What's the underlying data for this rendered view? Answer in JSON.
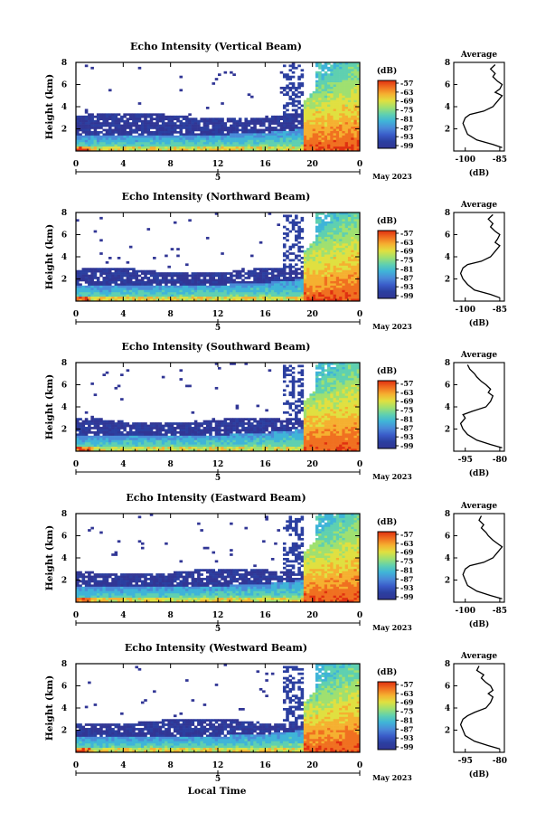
{
  "figure": {
    "xlabel": "Local Time",
    "date_label": "May 2023",
    "colorbar_unit": "(dB)",
    "colorbar_ticks": [
      "-57",
      "-63",
      "-69",
      "-75",
      "-81",
      "-87",
      "-93",
      "-99"
    ],
    "colormap": [
      "#313695",
      "#2b3fa0",
      "#3a5cc9",
      "#4a8bd9",
      "#3fb4d8",
      "#5fd0b0",
      "#9fe070",
      "#e0e040",
      "#f5b030",
      "#f07020",
      "#e03010"
    ]
  },
  "chart_data": [
    {
      "type": "heatmap",
      "title": "Echo Intensity (Vertical Beam)",
      "ylabel": "Height (km)",
      "xticks": [
        "0",
        "4",
        "8",
        "12",
        "16",
        "20",
        "0"
      ],
      "yticks": [
        "8",
        "6",
        "4",
        "2"
      ],
      "xlim": [
        0,
        24
      ],
      "ylim": [
        0,
        8
      ],
      "day_tick": "5",
      "profile": {
        "title": "Average",
        "xlabel": "(dB)",
        "xticks": [
          "-100",
          "-85"
        ],
        "xlim": [
          -105,
          -83
        ],
        "height": [
          0.3,
          0.6,
          1.0,
          1.5,
          2.0,
          2.5,
          3.0,
          3.3,
          3.6,
          4.0,
          4.5,
          5.0,
          5.3,
          5.6,
          6.0,
          6.3,
          6.7,
          7.0,
          7.4,
          7.8
        ],
        "values": [
          -84,
          -88,
          -95,
          -99,
          -100,
          -101,
          -100,
          -98,
          -92,
          -88,
          -86,
          -84,
          -87,
          -85,
          -84,
          -86,
          -88,
          -87,
          -89,
          -87
        ]
      }
    },
    {
      "type": "heatmap",
      "title": "Echo Intensity (Northward Beam)",
      "ylabel": "Height (km)",
      "xticks": [
        "0",
        "4",
        "8",
        "12",
        "16",
        "20",
        "0"
      ],
      "yticks": [
        "8",
        "6",
        "4",
        "2"
      ],
      "xlim": [
        0,
        24
      ],
      "ylim": [
        0,
        8
      ],
      "day_tick": "5",
      "profile": {
        "title": "Average",
        "xlabel": "(dB)",
        "xticks": [
          "-100",
          "-85"
        ],
        "xlim": [
          -105,
          -83
        ],
        "height": [
          0.3,
          0.6,
          1.0,
          1.5,
          2.0,
          2.5,
          3.0,
          3.3,
          3.6,
          4.0,
          4.5,
          5.0,
          5.3,
          5.6,
          6.0,
          6.3,
          6.7,
          7.0,
          7.4,
          7.8
        ],
        "values": [
          -85,
          -89,
          -96,
          -99,
          -101,
          -102,
          -101,
          -99,
          -93,
          -89,
          -87,
          -85,
          -87,
          -86,
          -85,
          -87,
          -89,
          -88,
          -90,
          -88
        ]
      }
    },
    {
      "type": "heatmap",
      "title": "Echo Intensity (Southward Beam)",
      "ylabel": "Height (km)",
      "xticks": [
        "0",
        "4",
        "8",
        "12",
        "16",
        "20",
        "0"
      ],
      "yticks": [
        "8",
        "6",
        "4",
        "2"
      ],
      "xlim": [
        0,
        24
      ],
      "ylim": [
        0,
        8
      ],
      "day_tick": "5",
      "profile": {
        "title": "Average",
        "xlabel": "(dB)",
        "xticks": [
          "-95",
          "-80"
        ],
        "xlim": [
          -100,
          -78
        ],
        "height": [
          0.3,
          0.6,
          1.0,
          1.5,
          2.0,
          2.5,
          3.0,
          3.3,
          3.6,
          4.0,
          4.5,
          5.0,
          5.3,
          5.6,
          6.0,
          6.3,
          6.7,
          7.0,
          7.4,
          7.8
        ],
        "values": [
          -79,
          -84,
          -90,
          -94,
          -96,
          -97,
          -95,
          -96,
          -92,
          -86,
          -84,
          -83,
          -85,
          -84,
          -86,
          -88,
          -90,
          -91,
          -93,
          -94
        ]
      }
    },
    {
      "type": "heatmap",
      "title": "Echo Intensity (Eastward Beam)",
      "ylabel": "Height (km)",
      "xticks": [
        "0",
        "4",
        "8",
        "12",
        "16",
        "20",
        "0"
      ],
      "yticks": [
        "8",
        "6",
        "4",
        "2"
      ],
      "xlim": [
        0,
        24
      ],
      "ylim": [
        0,
        8
      ],
      "day_tick": "5",
      "profile": {
        "title": "Average",
        "xlabel": "(dB)",
        "xticks": [
          "-100",
          "-85"
        ],
        "xlim": [
          -105,
          -83
        ],
        "height": [
          0.3,
          0.6,
          1.0,
          1.5,
          2.0,
          2.5,
          3.0,
          3.3,
          3.6,
          4.0,
          4.5,
          5.0,
          5.3,
          5.6,
          6.0,
          6.3,
          6.7,
          7.0,
          7.4,
          7.8
        ],
        "values": [
          -84,
          -89,
          -95,
          -99,
          -100,
          -101,
          -100,
          -98,
          -92,
          -88,
          -86,
          -84,
          -86,
          -88,
          -90,
          -91,
          -93,
          -92,
          -94,
          -93
        ]
      }
    },
    {
      "type": "heatmap",
      "title": "Echo Intensity (Westward Beam)",
      "ylabel": "Height (km)",
      "xticks": [
        "0",
        "4",
        "8",
        "12",
        "16",
        "20",
        "0"
      ],
      "yticks": [
        "8",
        "6",
        "4",
        "2"
      ],
      "xlim": [
        0,
        24
      ],
      "ylim": [
        0,
        8
      ],
      "day_tick": "5",
      "profile": {
        "title": "Average",
        "xlabel": "(dB)",
        "xticks": [
          "-95",
          "-80"
        ],
        "xlim": [
          -100,
          -78
        ],
        "height": [
          0.3,
          0.6,
          1.0,
          1.5,
          2.0,
          2.5,
          3.0,
          3.3,
          3.6,
          4.0,
          4.5,
          5.0,
          5.3,
          5.6,
          6.0,
          6.3,
          6.7,
          7.0,
          7.4,
          7.8
        ],
        "values": [
          -80,
          -85,
          -91,
          -95,
          -96,
          -97,
          -96,
          -94,
          -91,
          -86,
          -84,
          -83,
          -85,
          -83,
          -84,
          -86,
          -88,
          -87,
          -90,
          -89
        ]
      }
    }
  ]
}
